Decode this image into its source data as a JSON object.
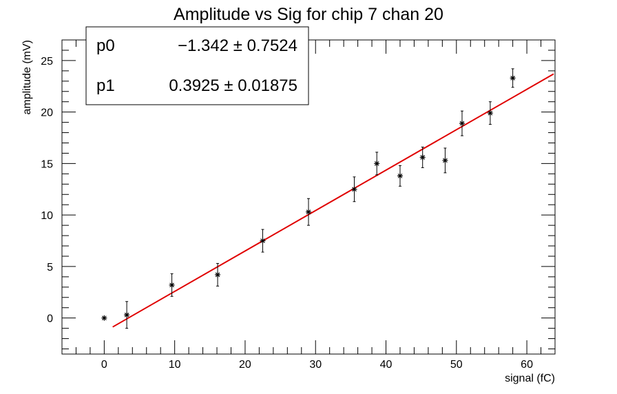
{
  "chart_data": {
    "type": "scatter",
    "title": "Amplitude vs Sig for chip 7 chan 20",
    "xlabel": "signal (fC)",
    "ylabel": "amplitude (mV)",
    "xlim": [
      -6,
      64
    ],
    "ylim": [
      -3.5,
      27
    ],
    "xticks": [
      0,
      10,
      20,
      30,
      40,
      50,
      60
    ],
    "yticks": [
      0,
      5,
      10,
      15,
      20,
      25
    ],
    "grid": false,
    "series": [
      {
        "marker": "star",
        "color": "#000000",
        "points": [
          {
            "x": 0.0,
            "y": 0.0,
            "yerr": 0.0
          },
          {
            "x": 3.2,
            "y": 0.3,
            "yerr": 1.3
          },
          {
            "x": 9.6,
            "y": 3.2,
            "yerr": 1.1
          },
          {
            "x": 16.1,
            "y": 4.2,
            "yerr": 1.1
          },
          {
            "x": 22.5,
            "y": 7.5,
            "yerr": 1.1
          },
          {
            "x": 29.0,
            "y": 10.3,
            "yerr": 1.3
          },
          {
            "x": 35.5,
            "y": 12.5,
            "yerr": 1.2
          },
          {
            "x": 38.7,
            "y": 15.0,
            "yerr": 1.1
          },
          {
            "x": 42.0,
            "y": 13.8,
            "yerr": 1.0
          },
          {
            "x": 45.2,
            "y": 15.6,
            "yerr": 1.0
          },
          {
            "x": 48.4,
            "y": 15.3,
            "yerr": 1.2
          },
          {
            "x": 50.8,
            "y": 18.9,
            "yerr": 1.2
          },
          {
            "x": 54.8,
            "y": 19.9,
            "yerr": 1.1
          },
          {
            "x": 58.0,
            "y": 23.3,
            "yerr": 0.9
          }
        ]
      }
    ],
    "fit": {
      "color": "#e00000",
      "x_range": [
        1.2,
        63.8
      ],
      "p0": -1.342,
      "p1": 0.3925
    },
    "stats_box": {
      "rows": [
        {
          "name": "p0",
          "value": "−1.342 ± 0.7524"
        },
        {
          "name": "p1",
          "value": "0.3925 ± 0.01875"
        }
      ]
    }
  }
}
